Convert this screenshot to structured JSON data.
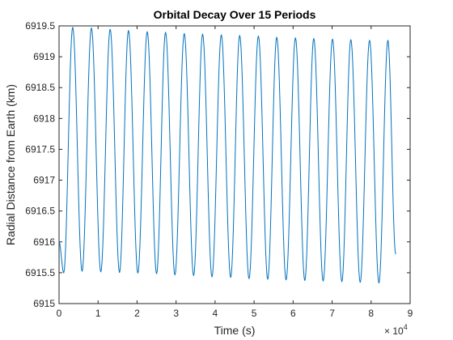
{
  "chart_data": {
    "type": "line",
    "title": "Orbital Decay Over 15 Periods",
    "xlabel": "Time (s)",
    "ylabel": "Radial Distance from Earth (km)",
    "xlim": [
      0,
      90000
    ],
    "ylim": [
      6915,
      6919.5
    ],
    "x_ticks": [
      0,
      10000,
      20000,
      30000,
      40000,
      50000,
      60000,
      70000,
      80000,
      90000
    ],
    "x_tick_labels": [
      "0",
      "1",
      "2",
      "3",
      "4",
      "5",
      "6",
      "7",
      "8",
      "9"
    ],
    "x_multiplier": {
      "base": "× 10",
      "exponent": "4"
    },
    "y_ticks": [
      6915,
      6915.5,
      6916,
      6916.5,
      6917,
      6917.5,
      6918,
      6918.5,
      6919,
      6919.5
    ],
    "y_tick_labels": [
      "6915",
      "6915.5",
      "6916",
      "6916.5",
      "6917",
      "6917.5",
      "6918",
      "6918.5",
      "6919",
      "6919.5"
    ],
    "grid": false,
    "line_color": "#0072BD",
    "series": [
      {
        "x": [
          0,
          1200,
          3500,
          5900,
          8300,
          10700,
          13100,
          15500,
          17800,
          20200,
          22600,
          25000,
          27300,
          29700,
          32100,
          34500,
          36800,
          39200,
          41600,
          44000,
          46300,
          48700,
          51100,
          53500,
          55800,
          58200,
          60600,
          63000,
          65300,
          67700,
          70100,
          72500,
          74800,
          77200,
          79600,
          82000,
          84300,
          86300
        ],
        "y": [
          6916.0,
          6915.5,
          6919.48,
          6915.52,
          6919.47,
          6915.51,
          6919.45,
          6915.5,
          6919.43,
          6915.49,
          6919.41,
          6915.48,
          6919.4,
          6915.46,
          6919.38,
          6915.45,
          6919.37,
          6915.43,
          6919.36,
          6915.42,
          6919.35,
          6915.4,
          6919.34,
          6915.39,
          6919.32,
          6915.38,
          6919.31,
          6915.37,
          6919.3,
          6915.36,
          6919.29,
          6915.35,
          6919.28,
          6915.34,
          6919.27,
          6915.33,
          6919.27,
          6915.8
        ]
      }
    ]
  }
}
